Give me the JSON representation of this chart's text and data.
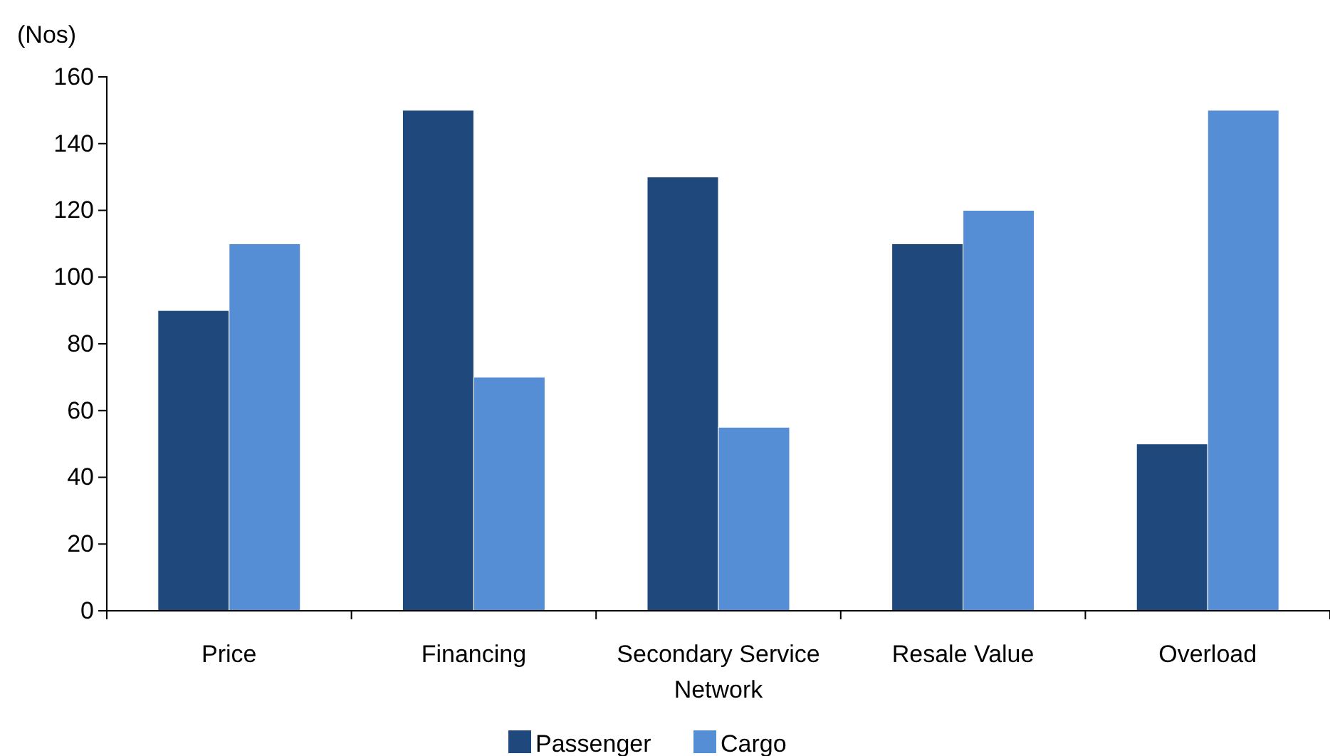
{
  "chart_data": {
    "type": "bar",
    "ylabel": "(Nos)",
    "categories": [
      "Price",
      "Financing",
      "Secondary Service Network",
      "Resale Value",
      "Overload"
    ],
    "series": [
      {
        "name": "Passenger",
        "color": "#1f497d",
        "values": [
          90,
          150,
          130,
          110,
          50
        ]
      },
      {
        "name": "Cargo",
        "color": "#558ed5",
        "values": [
          110,
          70,
          55,
          120,
          150
        ]
      }
    ],
    "ylim": [
      0,
      160
    ],
    "yticks": [
      0,
      20,
      40,
      60,
      80,
      100,
      120,
      140,
      160
    ],
    "grid": false,
    "legend": "bottom"
  }
}
